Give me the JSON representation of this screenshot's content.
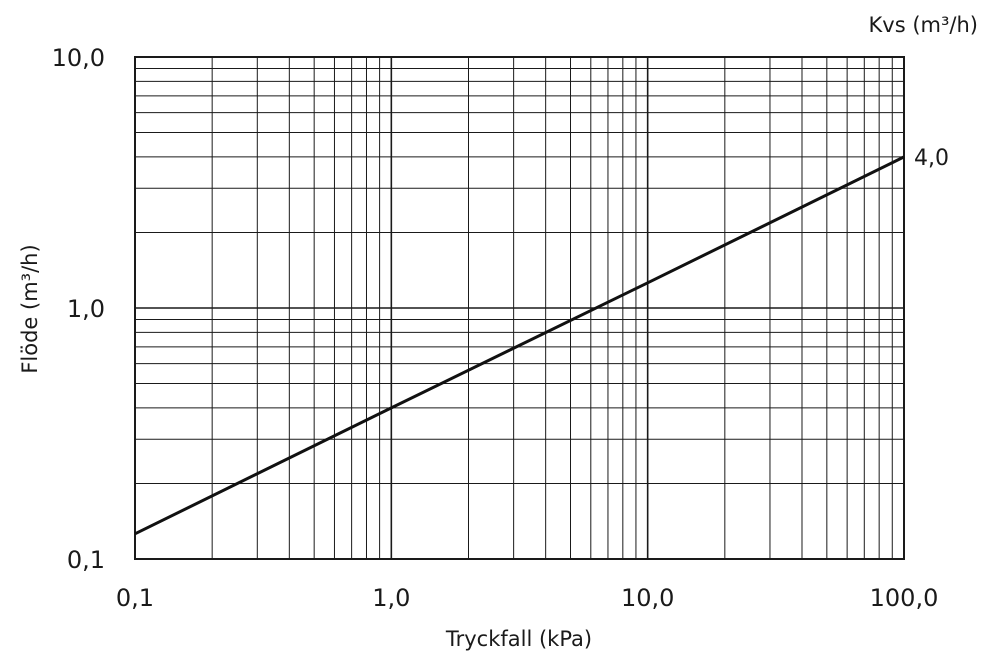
{
  "chart_data": {
    "type": "line",
    "x_scale": "log",
    "y_scale": "log",
    "xlim": [
      0.1,
      100
    ],
    "ylim": [
      0.1,
      10
    ],
    "grid": true,
    "xlabel": "Tryckfall (kPa)",
    "ylabel": "Flöde (m³/h)",
    "x_ticks": [
      {
        "value": 0.1,
        "label": "0,1"
      },
      {
        "value": 1,
        "label": "1,0"
      },
      {
        "value": 10,
        "label": "10,0"
      },
      {
        "value": 100,
        "label": "100,0"
      }
    ],
    "y_ticks": [
      {
        "value": 0.1,
        "label": "0,1"
      },
      {
        "value": 1,
        "label": "1,0"
      },
      {
        "value": 10,
        "label": "10,0"
      }
    ],
    "legend_title": "Kvs (m³/h)",
    "series": [
      {
        "label": "4,0",
        "x": [
          0.1,
          1,
          10,
          100
        ],
        "y": [
          0.126,
          0.4,
          1.26,
          4.0
        ]
      }
    ]
  }
}
